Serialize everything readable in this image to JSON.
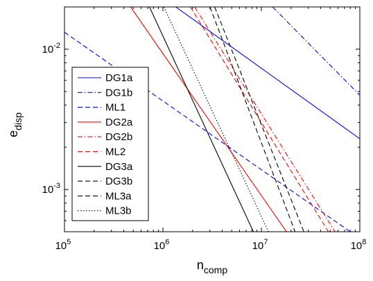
{
  "chart_data": {
    "type": "line",
    "xscale": "log",
    "yscale": "log",
    "xlim": [
      100000,
      100000000
    ],
    "ylim": [
      0.0005,
      0.02
    ],
    "xlabel": {
      "main": "n",
      "sub": "comp"
    },
    "ylabel": {
      "main": "e",
      "sub": "disp"
    },
    "x_ticks": [
      {
        "base": "10",
        "exp": "5",
        "value": 100000
      },
      {
        "base": "10",
        "exp": "6",
        "value": 1000000
      },
      {
        "base": "10",
        "exp": "7",
        "value": 10000000
      },
      {
        "base": "10",
        "exp": "8",
        "value": 100000000
      }
    ],
    "y_ticks": [
      {
        "base": "10",
        "exp": "-3",
        "value": 0.001
      },
      {
        "base": "10",
        "exp": "-2",
        "value": 0.01
      }
    ],
    "grid": false,
    "legend_position": "left",
    "series": [
      {
        "name": "DG1a",
        "color": "#0000ff",
        "dash": "solid",
        "x": [
          1350000,
          100000000
        ],
        "y": [
          0.02,
          0.0023
        ]
      },
      {
        "name": "DG1b",
        "color": "#0000ff",
        "dash": "dashdot",
        "x": [
          13000000,
          100000000
        ],
        "y": [
          0.02,
          0.0047
        ]
      },
      {
        "name": "ML1",
        "color": "#0000ff",
        "dash": "dashed",
        "x": [
          100000,
          80000000
        ],
        "y": [
          0.0132,
          0.0005
        ]
      },
      {
        "name": "DG2a",
        "color": "#ff0000",
        "dash": "solid",
        "x": [
          470000,
          18000000
        ],
        "y": [
          0.02,
          0.0005
        ]
      },
      {
        "name": "DG2b",
        "color": "#ff0000",
        "dash": "dashdot",
        "x": [
          2100000,
          56000000
        ],
        "y": [
          0.02,
          0.0005
        ]
      },
      {
        "name": "ML2",
        "color": "#ff0000",
        "dash": "dashed",
        "x": [
          1900000,
          48000000
        ],
        "y": [
          0.02,
          0.0005
        ]
      },
      {
        "name": "DG3a",
        "color": "#000000",
        "dash": "solid",
        "x": [
          730000,
          8300000
        ],
        "y": [
          0.02,
          0.0005
        ]
      },
      {
        "name": "DG3b",
        "color": "#000000",
        "dash": "dashed",
        "x": [
          3350000,
          27000000
        ],
        "y": [
          0.02,
          0.0005
        ]
      },
      {
        "name": "ML3a",
        "color": "#000000",
        "dash": "dashed",
        "x": [
          3000000,
          22000000
        ],
        "y": [
          0.02,
          0.0005
        ]
      },
      {
        "name": "ML3b",
        "color": "#000000",
        "dash": "dotted",
        "x": [
          1020000,
          11800000
        ],
        "y": [
          0.02,
          0.0005
        ]
      }
    ]
  }
}
